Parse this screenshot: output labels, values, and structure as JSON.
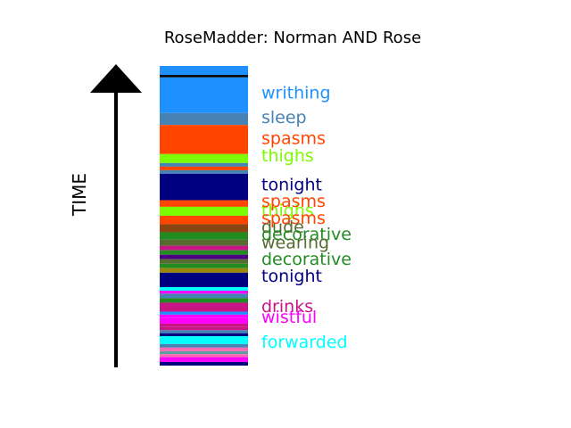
{
  "chart_data": {
    "type": "bar",
    "title": "RoseMadder: Norman AND Rose",
    "ylabel": "TIME",
    "ylim": [
      0,
      1
    ],
    "stripes": [
      {
        "from": 0.97,
        "to": 1.0,
        "color": "#1e90ff"
      },
      {
        "from": 0.962,
        "to": 0.97,
        "color": "#000000"
      },
      {
        "from": 0.843,
        "to": 0.962,
        "color": "#1e90ff"
      },
      {
        "from": 0.803,
        "to": 0.843,
        "color": "#4682b4"
      },
      {
        "from": 0.706,
        "to": 0.803,
        "color": "#ff4500"
      },
      {
        "from": 0.676,
        "to": 0.706,
        "color": "#7cfc00"
      },
      {
        "from": 0.664,
        "to": 0.676,
        "color": "#4682b4"
      },
      {
        "from": 0.652,
        "to": 0.664,
        "color": "#ff4500"
      },
      {
        "from": 0.64,
        "to": 0.652,
        "color": "#4682b4"
      },
      {
        "from": 0.552,
        "to": 0.64,
        "color": "#000080"
      },
      {
        "from": 0.53,
        "to": 0.552,
        "color": "#ff4500"
      },
      {
        "from": 0.5,
        "to": 0.53,
        "color": "#7cfc00"
      },
      {
        "from": 0.472,
        "to": 0.5,
        "color": "#ff4500"
      },
      {
        "from": 0.445,
        "to": 0.472,
        "color": "#8b4513"
      },
      {
        "from": 0.42,
        "to": 0.445,
        "color": "#228b22"
      },
      {
        "from": 0.4,
        "to": 0.42,
        "color": "#556b2f"
      },
      {
        "from": 0.385,
        "to": 0.4,
        "color": "#c71585"
      },
      {
        "from": 0.37,
        "to": 0.385,
        "color": "#228b22"
      },
      {
        "from": 0.355,
        "to": 0.37,
        "color": "#4b0082"
      },
      {
        "from": 0.34,
        "to": 0.355,
        "color": "#556b2f"
      },
      {
        "from": 0.325,
        "to": 0.34,
        "color": "#228b22"
      },
      {
        "from": 0.31,
        "to": 0.325,
        "color": "#9b870c"
      },
      {
        "from": 0.262,
        "to": 0.31,
        "color": "#000080"
      },
      {
        "from": 0.25,
        "to": 0.262,
        "color": "#00ffff"
      },
      {
        "from": 0.24,
        "to": 0.25,
        "color": "#ff00ff"
      },
      {
        "from": 0.225,
        "to": 0.24,
        "color": "#4682b4"
      },
      {
        "from": 0.21,
        "to": 0.225,
        "color": "#228b22"
      },
      {
        "from": 0.195,
        "to": 0.21,
        "color": "#c71585"
      },
      {
        "from": 0.18,
        "to": 0.195,
        "color": "#c71585"
      },
      {
        "from": 0.17,
        "to": 0.18,
        "color": "#1e90ff"
      },
      {
        "from": 0.16,
        "to": 0.17,
        "color": "#ff00ff"
      },
      {
        "from": 0.14,
        "to": 0.16,
        "color": "#ff00ff"
      },
      {
        "from": 0.13,
        "to": 0.14,
        "color": "#c71585"
      },
      {
        "from": 0.118,
        "to": 0.13,
        "color": "#c71585"
      },
      {
        "from": 0.108,
        "to": 0.118,
        "color": "#4682b4"
      },
      {
        "from": 0.098,
        "to": 0.108,
        "color": "#000080"
      },
      {
        "from": 0.072,
        "to": 0.098,
        "color": "#00ffff"
      },
      {
        "from": 0.06,
        "to": 0.072,
        "color": "#4682b4"
      },
      {
        "from": 0.048,
        "to": 0.06,
        "color": "#ff69b4"
      },
      {
        "from": 0.038,
        "to": 0.048,
        "color": "#5f9ea0"
      },
      {
        "from": 0.028,
        "to": 0.038,
        "color": "#ff69b4"
      },
      {
        "from": 0.012,
        "to": 0.028,
        "color": "#ff00ff"
      },
      {
        "from": 0.0,
        "to": 0.012,
        "color": "#000080"
      }
    ],
    "labels": [
      {
        "text": "writhing",
        "at": 0.912,
        "color": "#1e90ff"
      },
      {
        "text": "sleep",
        "at": 0.83,
        "color": "#4682b4"
      },
      {
        "text": "spasms",
        "at": 0.76,
        "color": "#ff4500"
      },
      {
        "text": "thighs",
        "at": 0.702,
        "color": "#7cfc00"
      },
      {
        "text": "tonight",
        "at": 0.606,
        "color": "#000080"
      },
      {
        "text": "thighs",
        "at": 0.52,
        "color": "#7cfc00"
      },
      {
        "text": "spasms",
        "at": 0.55,
        "color": "#ff4500"
      },
      {
        "text": "spasms",
        "at": 0.494,
        "color": "#ff4500"
      },
      {
        "text": "dude",
        "at": 0.465,
        "color": "#556b2f"
      },
      {
        "text": "decorative",
        "at": 0.44,
        "color": "#228b22"
      },
      {
        "text": "wearing",
        "at": 0.412,
        "color": "#556b2f"
      },
      {
        "text": "decorative",
        "at": 0.357,
        "color": "#228b22"
      },
      {
        "text": "tonight",
        "at": 0.3,
        "color": "#000080"
      },
      {
        "text": "drinks",
        "at": 0.2,
        "color": "#c71585"
      },
      {
        "text": "wistful",
        "at": 0.163,
        "color": "#ff00ff"
      },
      {
        "text": "forwarded",
        "at": 0.08,
        "color": "#00ffff"
      }
    ]
  }
}
